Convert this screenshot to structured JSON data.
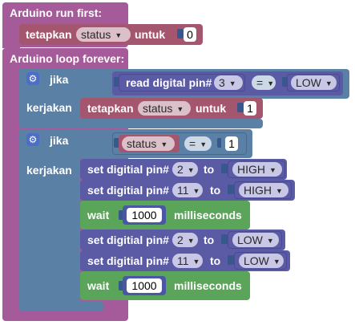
{
  "setup": {
    "title": "Arduino run first:"
  },
  "loop": {
    "title": "Arduino loop forever:"
  },
  "set_init": {
    "set_label": "tetapkan",
    "var": "status",
    "to_label": "untuk",
    "value": "0"
  },
  "if1": {
    "if_label": "jika",
    "cond": {
      "read_label": "read digital pin#",
      "pin": "3",
      "op": "=",
      "state": "LOW"
    },
    "do_label": "kerjakan",
    "set": {
      "set_label": "tetapkan",
      "var": "status",
      "to_label": "untuk",
      "value": "1"
    }
  },
  "if2": {
    "if_label": "jika",
    "cond": {
      "var": "status",
      "op": "=",
      "value": "1"
    },
    "do_label": "kerjakan",
    "statements": [
      {
        "label": "set digitial pin#",
        "pin": "2",
        "to_label": "to",
        "state": "HIGH"
      },
      {
        "label": "set digitial pin#",
        "pin": "11",
        "to_label": "to",
        "state": "HIGH"
      },
      {
        "wait_label": "wait",
        "value": "1000",
        "unit": "milliseconds"
      },
      {
        "label": "set digitial pin#",
        "pin": "2",
        "to_label": "to",
        "state": "LOW"
      },
      {
        "label": "set digitial pin#",
        "pin": "11",
        "to_label": "to",
        "state": "LOW"
      },
      {
        "wait_label": "wait",
        "value": "1000",
        "unit": "milliseconds"
      }
    ]
  },
  "icons": {
    "gear": "gear-icon",
    "dropdown": "dropdown-arrow-icon"
  },
  "colors": {
    "procedure": "#a55b99",
    "logic": "#5b80a5",
    "variable": "#a5566f",
    "io": "#5b5ba5",
    "timing": "#5ba55b"
  }
}
